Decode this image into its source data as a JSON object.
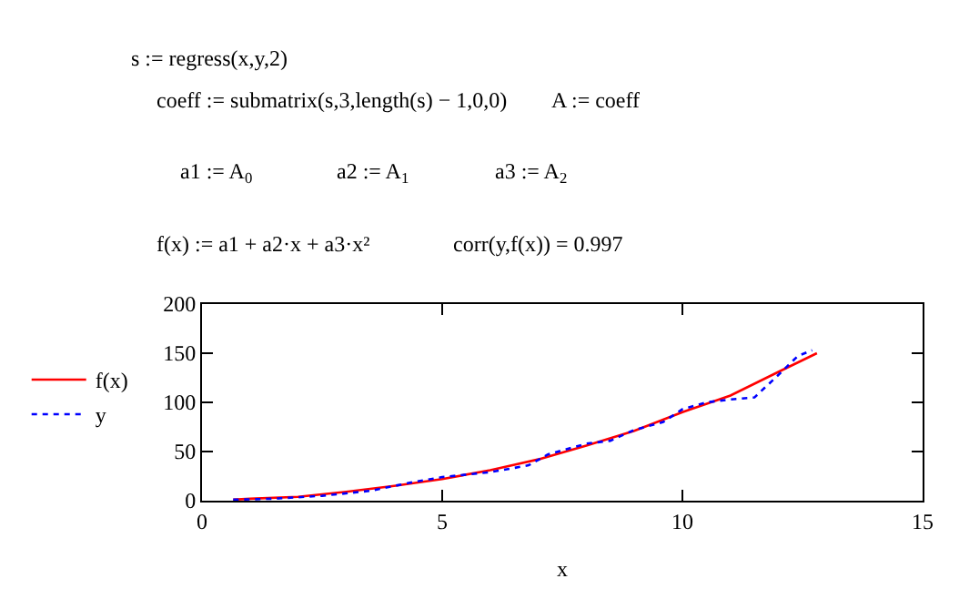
{
  "chart_data": {
    "type": "line",
    "xlabel": "x",
    "annotations": [
      "s := regress(x,y,2)",
      "coeff := submatrix(s,3,length(s) − 1,0,0)",
      "A := coeff",
      "a1 := A$_{0}$",
      "a2 := A$_{1}$",
      "a3 := A$_{2}$",
      "f(x) := a1 + a2·x + a3·x²",
      "corr(y,f(x)) = 0.997"
    ],
    "series": [
      {
        "name": "f(x)",
        "color": "#ff0000",
        "line_style": "solid",
        "x": [
          0.65,
          1,
          2,
          3,
          4,
          5,
          6,
          7,
          8,
          9,
          10,
          11,
          12,
          12.8
        ],
        "values": [
          1,
          2,
          4,
          9,
          15,
          22,
          31,
          42,
          56,
          71,
          90,
          107,
          131,
          150
        ]
      },
      {
        "name": "y",
        "color": "#0000ff",
        "line_style": "dotted",
        "x": [
          0.65,
          1.5,
          2.5,
          3.5,
          4.3,
          5,
          6,
          6.8,
          7.2,
          8,
          8.5,
          9,
          9.6,
          10,
          10.5,
          11,
          11.5,
          12,
          12.4,
          12.7
        ],
        "values": [
          1,
          2,
          5,
          10,
          18,
          24,
          29,
          36,
          47,
          58,
          61,
          72,
          80,
          93,
          100,
          103,
          105,
          128,
          147,
          153
        ]
      }
    ],
    "xlim": [
      0,
      15
    ],
    "xticks": [
      0,
      5,
      10,
      15
    ],
    "ylim": [
      0,
      200
    ],
    "yticks": [
      0,
      50,
      100,
      150,
      200
    ],
    "legend": "left",
    "marker": "none"
  }
}
